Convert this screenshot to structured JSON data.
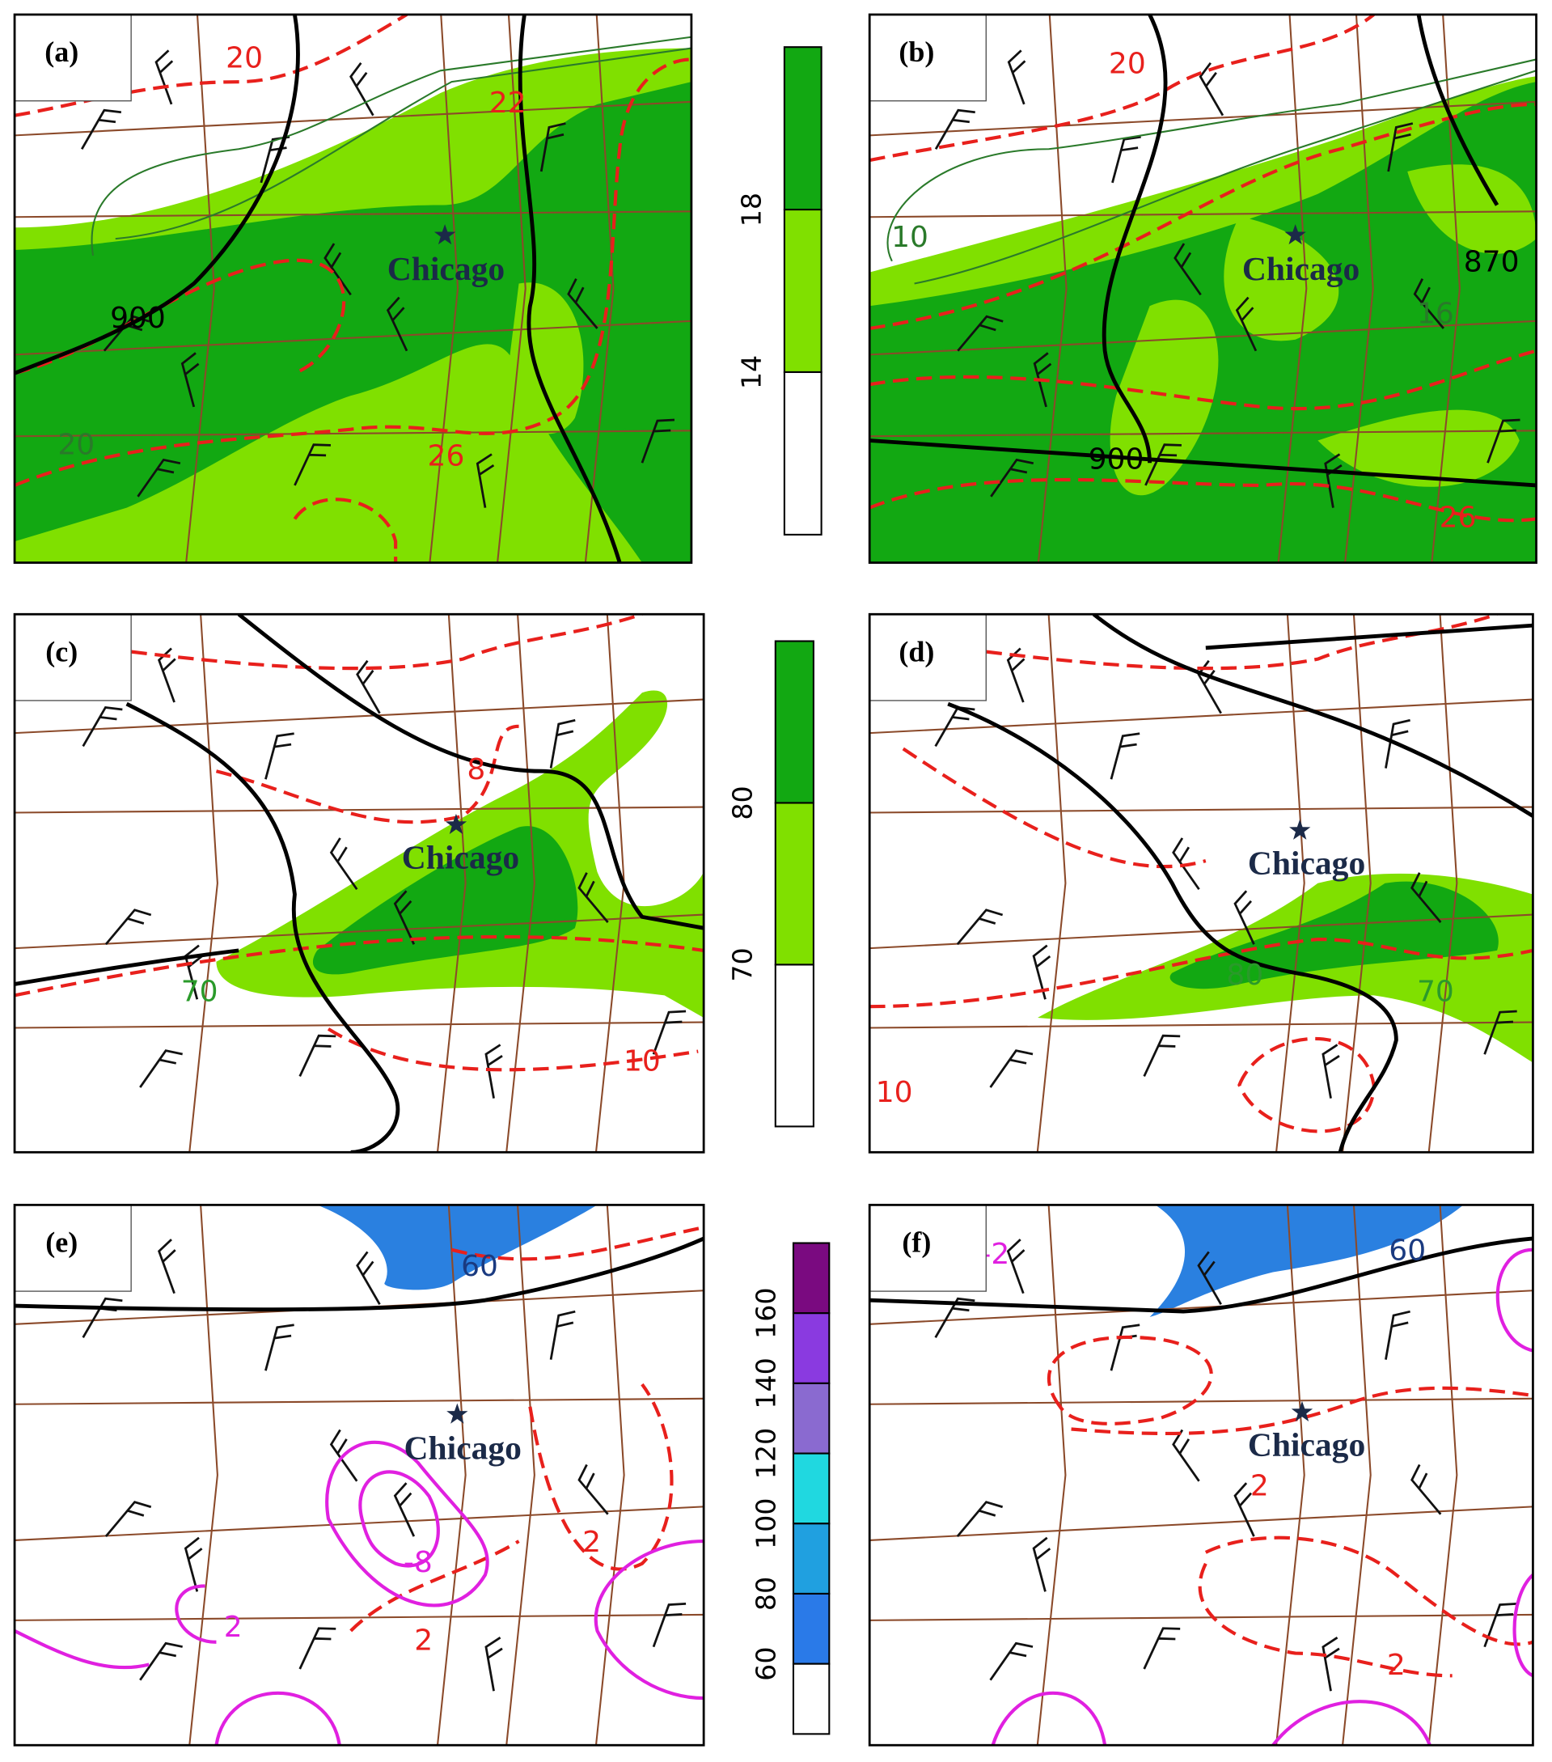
{
  "panels": [
    {
      "label": "(a)",
      "city": "Chicago",
      "contour_labels": [
        "20",
        "22",
        "900",
        "20",
        "26"
      ]
    },
    {
      "label": "(b)",
      "city": "Chicago",
      "contour_labels": [
        "20",
        "10",
        "870",
        "16",
        "900",
        "26"
      ]
    },
    {
      "label": "(c)",
      "city": "Chicago",
      "contour_labels": [
        "8",
        "70",
        "10"
      ]
    },
    {
      "label": "(d)",
      "city": "Chicago",
      "contour_labels": [
        "10",
        "80",
        "70"
      ]
    },
    {
      "label": "(e)",
      "city": "Chicago",
      "contour_labels": [
        "60",
        "-8",
        "2",
        "2",
        "2"
      ]
    },
    {
      "label": "(f)",
      "city": "Chicago",
      "contour_labels": [
        "60",
        "-2",
        "2",
        "2"
      ]
    }
  ],
  "colorbars": [
    {
      "ticks": [
        "18",
        "14"
      ],
      "colors": [
        "#12a812",
        "#80e000",
        "#ffffff"
      ]
    },
    {
      "ticks": [
        "80",
        "70"
      ],
      "colors": [
        "#12a812",
        "#80e000",
        "#ffffff"
      ]
    },
    {
      "ticks": [
        "160",
        "140",
        "120",
        "100",
        "80",
        "60"
      ],
      "colors": [
        "#7a0a80",
        "#8a3ae0",
        "#8a6ad0",
        "#20d8e0",
        "#20a0e0",
        "#2a7ae8",
        "#ffffff"
      ]
    }
  ]
}
